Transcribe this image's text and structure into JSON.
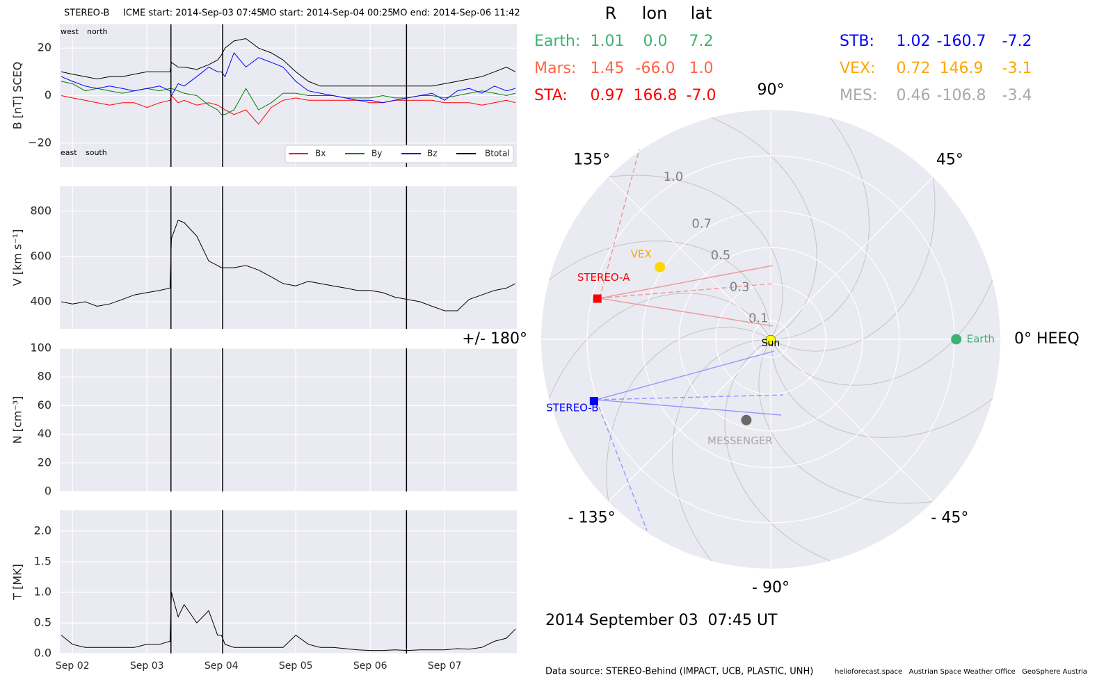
{
  "chart_data": [
    {
      "type": "line",
      "title": "STEREO-B",
      "events": [
        {
          "label": "ICME start: 2014-Sep-03 07:45",
          "x": 3.323
        },
        {
          "label": "MO start: 2014-Sep-04 00:25",
          "x": 4.017
        },
        {
          "label": "MO end: 2014-Sep-06 11:42",
          "x": 6.4875
        }
      ],
      "ylabel": "B [nT] SCEQ",
      "annotations": [
        "west",
        "north",
        "east",
        "south"
      ],
      "ylim": [
        -30,
        30
      ],
      "yticks": [
        {
          "value": -20,
          "label": "−20"
        },
        0,
        20
      ],
      "grid": true,
      "x": [
        1.85,
        2.0,
        2.17,
        2.33,
        2.5,
        2.67,
        2.83,
        3.0,
        3.17,
        3.31,
        3.33,
        3.42,
        3.5,
        3.67,
        3.83,
        3.95,
        4.0,
        4.05,
        4.17,
        4.33,
        4.5,
        4.67,
        4.83,
        5.0,
        5.17,
        5.33,
        5.5,
        5.67,
        5.83,
        6.0,
        6.17,
        6.33,
        6.5,
        6.67,
        6.83,
        7.0,
        7.17,
        7.33,
        7.5,
        7.67,
        7.83,
        7.95
      ],
      "series": [
        {
          "name": "Bx",
          "color": "#ff0000",
          "values": [
            0,
            -1,
            -2,
            -3,
            -4,
            -3,
            -3,
            -5,
            -3,
            -2,
            0,
            -3,
            -2,
            -4,
            -3,
            -4,
            -5,
            -6,
            -8,
            -6,
            -12,
            -5,
            -2,
            -1,
            -2,
            -2,
            -2,
            -2,
            -2,
            -3,
            -3,
            -2,
            -2,
            -2,
            -2,
            -3,
            -3,
            -3,
            -4,
            -3,
            -2,
            -3
          ]
        },
        {
          "name": "By",
          "color": "#008000",
          "values": [
            6,
            5,
            2,
            3,
            2,
            1,
            2,
            3,
            2,
            3,
            3,
            2,
            1,
            0,
            -4,
            -6,
            -8,
            -8,
            -6,
            3,
            -6,
            -3,
            1,
            1,
            0,
            0,
            0,
            -1,
            -1,
            -1,
            0,
            -1,
            -1,
            0,
            0,
            -1,
            0,
            1,
            2,
            1,
            0,
            1
          ]
        },
        {
          "name": "Bz",
          "color": "#0000ff",
          "values": [
            8,
            6,
            4,
            3,
            4,
            3,
            2,
            3,
            4,
            2,
            0,
            5,
            4,
            8,
            12,
            10,
            10,
            8,
            18,
            12,
            16,
            14,
            12,
            6,
            2,
            1,
            0,
            -1,
            -2,
            -2,
            -3,
            -2,
            -1,
            0,
            1,
            -2,
            2,
            3,
            1,
            4,
            2,
            3
          ]
        },
        {
          "name": "Btotal",
          "color": "#000000",
          "values": [
            10,
            9,
            8,
            7,
            8,
            8,
            9,
            10,
            10,
            10,
            14,
            12,
            12,
            11,
            13,
            15,
            17,
            20,
            23,
            24,
            20,
            18,
            15,
            10,
            6,
            4,
            4,
            4,
            4,
            4,
            4,
            4,
            4,
            4,
            4,
            5,
            6,
            7,
            8,
            10,
            12,
            10
          ]
        }
      ]
    },
    {
      "type": "line",
      "ylabel": "V [km s⁻¹]",
      "ylim": [
        280,
        910
      ],
      "yticks": [
        400,
        600,
        800
      ],
      "grid": true,
      "x": [
        1.85,
        2.0,
        2.17,
        2.33,
        2.5,
        2.67,
        2.83,
        3.0,
        3.17,
        3.31,
        3.33,
        3.42,
        3.5,
        3.67,
        3.83,
        3.95,
        4.0,
        4.05,
        4.17,
        4.33,
        4.5,
        4.67,
        4.83,
        5.0,
        5.17,
        5.33,
        5.5,
        5.67,
        5.83,
        6.0,
        6.17,
        6.33,
        6.5,
        6.67,
        6.83,
        7.0,
        7.17,
        7.33,
        7.5,
        7.67,
        7.83,
        7.95
      ],
      "series": [
        {
          "color": "#000000",
          "values": [
            400,
            390,
            400,
            380,
            390,
            410,
            430,
            440,
            450,
            460,
            680,
            760,
            750,
            690,
            580,
            560,
            550,
            550,
            550,
            560,
            540,
            510,
            480,
            470,
            490,
            480,
            470,
            460,
            450,
            450,
            440,
            420,
            410,
            400,
            380,
            360,
            360,
            410,
            430,
            450,
            460,
            480
          ]
        }
      ]
    },
    {
      "type": "line",
      "ylabel": "N [cm⁻³]",
      "ylim": [
        0,
        100
      ],
      "yticks": [
        0,
        20,
        40,
        60,
        80,
        100
      ],
      "grid": true,
      "series": []
    },
    {
      "type": "line",
      "ylabel": "T [MK]",
      "xlim": [
        1.83,
        7.97
      ],
      "xticks": [
        {
          "value": 2,
          "label": "Sep 02"
        },
        {
          "value": 3,
          "label": "Sep 03"
        },
        {
          "value": 4,
          "label": "Sep 04"
        },
        {
          "value": 5,
          "label": "Sep 05"
        },
        {
          "value": 6,
          "label": "Sep 06"
        },
        {
          "value": 7,
          "label": "Sep 07"
        }
      ],
      "ylim": [
        0,
        2.34
      ],
      "yticks": [
        {
          "value": 0,
          "label": "0.0"
        },
        {
          "value": 0.5,
          "label": "0.5"
        },
        {
          "value": 1,
          "label": "1.0"
        },
        {
          "value": 1.5,
          "label": "1.5"
        },
        {
          "value": 2,
          "label": "2.0"
        }
      ],
      "grid": true,
      "x": [
        1.85,
        2.0,
        2.17,
        2.33,
        2.5,
        2.67,
        2.83,
        3.0,
        3.17,
        3.31,
        3.33,
        3.42,
        3.5,
        3.67,
        3.83,
        3.95,
        4.0,
        4.05,
        4.17,
        4.33,
        4.5,
        4.67,
        4.83,
        5.0,
        5.17,
        5.33,
        5.5,
        5.67,
        5.83,
        6.0,
        6.17,
        6.33,
        6.5,
        6.67,
        6.83,
        7.0,
        7.17,
        7.33,
        7.5,
        7.67,
        7.83,
        7.95
      ],
      "series": [
        {
          "color": "#000000",
          "values": [
            0.3,
            0.15,
            0.1,
            0.1,
            0.1,
            0.1,
            0.1,
            0.15,
            0.15,
            0.2,
            1.0,
            0.6,
            0.8,
            0.5,
            0.7,
            0.3,
            0.3,
            0.15,
            0.1,
            0.1,
            0.1,
            0.1,
            0.1,
            0.3,
            0.15,
            0.1,
            0.1,
            0.08,
            0.06,
            0.05,
            0.05,
            0.06,
            0.05,
            0.06,
            0.06,
            0.06,
            0.08,
            0.07,
            0.1,
            0.2,
            0.25,
            0.4
          ]
        }
      ]
    },
    {
      "type": "polar",
      "title": "2014 September 03  07:45 UT",
      "rlim": [
        0,
        1.25
      ],
      "rticks": [
        0.1,
        0.3,
        0.5,
        0.7,
        {
          "value": 1,
          "label": "1.0"
        }
      ],
      "thetaticks": [
        {
          "value": 0,
          "label": "0° HEEQ"
        },
        {
          "value": 45,
          "label": "45°"
        },
        {
          "value": 90,
          "label": "90°"
        },
        {
          "value": 135,
          "label": "135°"
        },
        {
          "value": 180,
          "label": "+/- 180°"
        },
        {
          "value": -135,
          "label": "- 135°"
        },
        {
          "value": -90,
          "label": "- 90°"
        },
        {
          "value": -45,
          "label": "- 45°"
        }
      ],
      "columns": [
        "R",
        "lon",
        "lat"
      ],
      "bodies": {
        "names": [
          "Earth:",
          "Mars:",
          "STA:",
          "STB:",
          "VEX:",
          "MES:"
        ],
        "colors": [
          "#3cb371",
          "#ff6347",
          "#ff0000",
          "#0000ff",
          "#ffa500",
          "#a9a9a9"
        ],
        "R": [
          1.01,
          1.45,
          0.97,
          1.02,
          0.72,
          0.46
        ],
        "lon": [
          0,
          -66,
          166.8,
          -160.7,
          146.9,
          -106.8
        ],
        "lon_labels": [
          "0.0",
          "-66.0",
          "166.8",
          "-160.7",
          "146.9",
          "-106.8"
        ],
        "lat": [
          7.2,
          1,
          -7,
          -7.2,
          -3.1,
          -3.4
        ],
        "lat_labels": [
          "7.2",
          "1.0",
          "-7.0",
          "-7.2",
          "-3.1",
          "-3.4"
        ],
        "plot_labels": [
          "Earth",
          null,
          "STEREO-A",
          "STEREO-B",
          "VEX",
          "MESSENGER"
        ],
        "markers": [
          "circle",
          null,
          "square",
          "square",
          "circle",
          "circle"
        ],
        "marker_colors": [
          "#3cb371",
          null,
          "#ff0000",
          "#0000ff",
          "#ffd700",
          "#696969"
        ]
      },
      "sun_label": "Sun",
      "sun_color": "#ffff00"
    }
  ],
  "footer": {
    "source": "Data source: STEREO-Behind (IMPACT, UCB, PLASTIC, UNH)",
    "credits": "helioforecast.space   Austrian Space Weather Office   GeoSphere Austria"
  }
}
